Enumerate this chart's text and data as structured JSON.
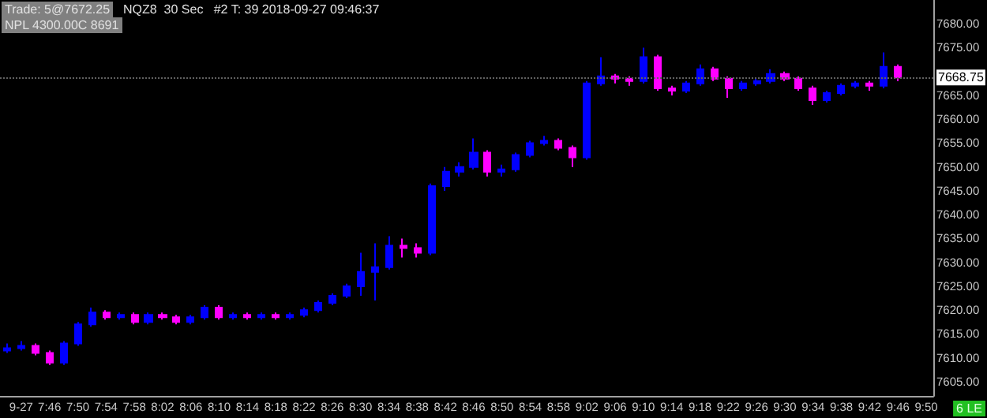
{
  "chart_data": {
    "type": "candlestick",
    "annotations": [
      "Trade: 5@7672.25",
      "NQZ8  30 Sec   #2 T: 39 2018-09-27 09:46:37",
      "NPL 4300.00C 8691",
      "6 LE"
    ],
    "x": [
      "2018-09-27T07:40",
      "2018-09-27T07:42",
      "2018-09-27T07:44",
      "2018-09-27T07:46",
      "2018-09-27T07:48",
      "2018-09-27T07:50",
      "2018-09-27T07:52",
      "2018-09-27T07:54",
      "2018-09-27T07:56",
      "2018-09-27T07:58",
      "2018-09-27T08:00",
      "2018-09-27T08:02",
      "2018-09-27T08:04",
      "2018-09-27T08:06",
      "2018-09-27T08:08",
      "2018-09-27T08:10",
      "2018-09-27T08:12",
      "2018-09-27T08:14",
      "2018-09-27T08:16",
      "2018-09-27T08:18",
      "2018-09-27T08:20",
      "2018-09-27T08:22",
      "2018-09-27T08:24",
      "2018-09-27T08:26",
      "2018-09-27T08:28",
      "2018-09-27T08:30",
      "2018-09-27T08:32",
      "2018-09-27T08:34",
      "2018-09-27T08:36",
      "2018-09-27T08:38",
      "2018-09-27T08:40",
      "2018-09-27T08:42",
      "2018-09-27T08:44",
      "2018-09-27T08:46",
      "2018-09-27T08:48",
      "2018-09-27T08:50",
      "2018-09-27T08:52",
      "2018-09-27T08:54",
      "2018-09-27T08:56",
      "2018-09-27T08:58",
      "2018-09-27T09:00",
      "2018-09-27T09:02",
      "2018-09-27T09:04",
      "2018-09-27T09:06",
      "2018-09-27T09:08",
      "2018-09-27T09:10",
      "2018-09-27T09:12",
      "2018-09-27T09:14",
      "2018-09-27T09:16",
      "2018-09-27T09:18",
      "2018-09-27T09:20",
      "2018-09-27T09:22",
      "2018-09-27T09:24",
      "2018-09-27T09:26",
      "2018-09-27T09:28",
      "2018-09-27T09:30",
      "2018-09-27T09:32",
      "2018-09-27T09:34",
      "2018-09-27T09:36",
      "2018-09-27T09:38",
      "2018-09-27T09:40",
      "2018-09-27T09:42",
      "2018-09-27T09:44",
      "2018-09-27T09:46"
    ],
    "ohlc": [
      [
        7611.5,
        7613,
        7611,
        7612
      ],
      [
        7612,
        7613.5,
        7611.5,
        7612.5
      ],
      [
        7612.5,
        7613,
        7610.5,
        7611
      ],
      [
        7611,
        7611.5,
        7608.5,
        7609
      ],
      [
        7609,
        7613.5,
        7608.5,
        7613
      ],
      [
        7613,
        7617.5,
        7612.5,
        7617
      ],
      [
        7617,
        7620.5,
        7616.5,
        7619.5
      ],
      [
        7619.5,
        7620,
        7618,
        7618.5
      ],
      [
        7618.5,
        7619.5,
        7618,
        7619
      ],
      [
        7619,
        7619.5,
        7617,
        7617.5
      ],
      [
        7617.5,
        7619.5,
        7617,
        7619
      ],
      [
        7619,
        7619.5,
        7618,
        7618.5
      ],
      [
        7618.5,
        7619,
        7617,
        7617.5
      ],
      [
        7617.5,
        7619,
        7617,
        7618.5
      ],
      [
        7618.5,
        7621,
        7618,
        7620.5
      ],
      [
        7620.5,
        7621,
        7618,
        7618.5
      ],
      [
        7618.5,
        7619.5,
        7618,
        7619
      ],
      [
        7619,
        7619.5,
        7618,
        7618.5
      ],
      [
        7618.5,
        7619.5,
        7618,
        7619
      ],
      [
        7619,
        7619.5,
        7618,
        7618.5
      ],
      [
        7618.5,
        7619.5,
        7618,
        7619
      ],
      [
        7619,
        7620.5,
        7618.5,
        7620
      ],
      [
        7620,
        7622,
        7619.5,
        7621.5
      ],
      [
        7621.5,
        7623.5,
        7621,
        7623
      ],
      [
        7623,
        7625.5,
        7622.5,
        7625
      ],
      [
        7625,
        7632,
        7623,
        7628
      ],
      [
        7628,
        7634,
        7622,
        7629
      ],
      [
        7629,
        7635.5,
        7628.5,
        7633.5
      ],
      [
        7633.5,
        7635,
        7631,
        7633
      ],
      [
        7633,
        7634,
        7631,
        7632
      ],
      [
        7632,
        7646.5,
        7631.5,
        7646
      ],
      [
        7646,
        7650,
        7645,
        7649
      ],
      [
        7649,
        7651,
        7648,
        7650
      ],
      [
        7650,
        7656,
        7649.5,
        7653
      ],
      [
        7653,
        7653.5,
        7648,
        7649
      ],
      [
        7649,
        7650.5,
        7648,
        7649.5
      ],
      [
        7649.5,
        7653,
        7649,
        7652.5
      ],
      [
        7652.5,
        7655.5,
        7652,
        7655
      ],
      [
        7655,
        7656.5,
        7654.5,
        7655.5
      ],
      [
        7655.5,
        7656,
        7653.5,
        7654
      ],
      [
        7654,
        7654.5,
        7650,
        7652
      ],
      [
        7652,
        7668,
        7651.5,
        7667.5
      ],
      [
        7667.5,
        7673,
        7667,
        7669
      ],
      [
        7669,
        7669.5,
        7667.5,
        7668.5
      ],
      [
        7668.5,
        7669,
        7667,
        7668
      ],
      [
        7668,
        7675,
        7667.5,
        7673
      ],
      [
        7673,
        7673.5,
        7666,
        7666.5
      ],
      [
        7666.5,
        7667,
        7665,
        7666
      ],
      [
        7666,
        7668,
        7665.5,
        7667.5
      ],
      [
        7667.5,
        7671.5,
        7667,
        7670.5
      ],
      [
        7670.5,
        7671,
        7668,
        7668.5
      ],
      [
        7668.5,
        7669,
        7664.5,
        7666.5
      ],
      [
        7666.5,
        7668,
        7666,
        7667.5
      ],
      [
        7667.5,
        7668.5,
        7667,
        7668
      ],
      [
        7668,
        7670.5,
        7667.5,
        7669.5
      ],
      [
        7669.5,
        7670,
        7668,
        7668.5
      ],
      [
        7668.5,
        7669,
        7666,
        7666.5
      ],
      [
        7666.5,
        7667,
        7663,
        7664
      ],
      [
        7664,
        7666,
        7663.5,
        7665.5
      ],
      [
        7665.5,
        7667.5,
        7665,
        7667
      ],
      [
        7667,
        7668,
        7666.5,
        7667.5
      ],
      [
        7667.5,
        7668,
        7666,
        7667
      ],
      [
        7667,
        7674,
        7666.5,
        7671
      ],
      [
        7671,
        7671.5,
        7668,
        7668.75
      ]
    ],
    "colors": [
      "#0000ff",
      "#0000ff",
      "#ff00ff",
      "#ff00ff",
      "#0000ff",
      "#0000ff",
      "#0000ff",
      "#ff00ff",
      "#0000ff",
      "#ff00ff",
      "#0000ff",
      "#ff00ff",
      "#ff00ff",
      "#0000ff",
      "#0000ff",
      "#ff00ff",
      "#0000ff",
      "#ff00ff",
      "#0000ff",
      "#ff00ff",
      "#0000ff",
      "#0000ff",
      "#0000ff",
      "#0000ff",
      "#0000ff",
      "#0000ff",
      "#0000ff",
      "#0000ff",
      "#ff00ff",
      "#ff00ff",
      "#0000ff",
      "#0000ff",
      "#0000ff",
      "#0000ff",
      "#ff00ff",
      "#0000ff",
      "#0000ff",
      "#0000ff",
      "#0000ff",
      "#ff00ff",
      "#ff00ff",
      "#0000ff",
      "#0000ff",
      "#ff00ff",
      "#ff00ff",
      "#0000ff",
      "#ff00ff",
      "#ff00ff",
      "#0000ff",
      "#0000ff",
      "#ff00ff",
      "#ff00ff",
      "#0000ff",
      "#0000ff",
      "#0000ff",
      "#ff00ff",
      "#ff00ff",
      "#ff00ff",
      "#0000ff",
      "#0000ff",
      "#0000ff",
      "#ff00ff",
      "#0000ff",
      "#ff00ff"
    ],
    "xlim": [
      "2018-09-27T07:39",
      "2018-09-27T09:51"
    ],
    "xticks": [
      {
        "value": "2018-09-27T07:42",
        "label": "9-27"
      },
      {
        "value": "2018-09-27T07:46",
        "label": "7:46"
      },
      {
        "value": "2018-09-27T07:50",
        "label": "7:50"
      },
      {
        "value": "2018-09-27T07:54",
        "label": "7:54"
      },
      {
        "value": "2018-09-27T07:58",
        "label": "7:58"
      },
      {
        "value": "2018-09-27T08:02",
        "label": "8:02"
      },
      {
        "value": "2018-09-27T08:06",
        "label": "8:06"
      },
      {
        "value": "2018-09-27T08:10",
        "label": "8:10"
      },
      {
        "value": "2018-09-27T08:14",
        "label": "8:14"
      },
      {
        "value": "2018-09-27T08:18",
        "label": "8:18"
      },
      {
        "value": "2018-09-27T08:22",
        "label": "8:22"
      },
      {
        "value": "2018-09-27T08:26",
        "label": "8:26"
      },
      {
        "value": "2018-09-27T08:30",
        "label": "8:30"
      },
      {
        "value": "2018-09-27T08:34",
        "label": "8:34"
      },
      {
        "value": "2018-09-27T08:38",
        "label": "8:38"
      },
      {
        "value": "2018-09-27T08:42",
        "label": "8:42"
      },
      {
        "value": "2018-09-27T08:46",
        "label": "8:46"
      },
      {
        "value": "2018-09-27T08:50",
        "label": "8:50"
      },
      {
        "value": "2018-09-27T08:54",
        "label": "8:54"
      },
      {
        "value": "2018-09-27T08:58",
        "label": "8:58"
      },
      {
        "value": "2018-09-27T09:02",
        "label": "9:02"
      },
      {
        "value": "2018-09-27T09:06",
        "label": "9:06"
      },
      {
        "value": "2018-09-27T09:10",
        "label": "9:10"
      },
      {
        "value": "2018-09-27T09:14",
        "label": "9:14"
      },
      {
        "value": "2018-09-27T09:18",
        "label": "9:18"
      },
      {
        "value": "2018-09-27T09:22",
        "label": "9:22"
      },
      {
        "value": "2018-09-27T09:26",
        "label": "9:26"
      },
      {
        "value": "2018-09-27T09:30",
        "label": "9:30"
      },
      {
        "value": "2018-09-27T09:34",
        "label": "9:34"
      },
      {
        "value": "2018-09-27T09:38",
        "label": "9:38"
      },
      {
        "value": "2018-09-27T09:42",
        "label": "9:42"
      },
      {
        "value": "2018-09-27T09:46",
        "label": "9:46"
      },
      {
        "value": "2018-09-27T09:50",
        "label": "9:50"
      }
    ],
    "ylim": [
      7602,
      7685
    ],
    "yticks": [
      {
        "value": 7605,
        "label": "7605.00"
      },
      {
        "value": 7610,
        "label": "7610.00"
      },
      {
        "value": 7615,
        "label": "7615.00"
      },
      {
        "value": 7620,
        "label": "7620.00"
      },
      {
        "value": 7625,
        "label": "7625.00"
      },
      {
        "value": 7630,
        "label": "7630.00"
      },
      {
        "value": 7635,
        "label": "7635.00"
      },
      {
        "value": 7640,
        "label": "7640.00"
      },
      {
        "value": 7645,
        "label": "7645.00"
      },
      {
        "value": 7650,
        "label": "7650.00"
      },
      {
        "value": 7655,
        "label": "7655.00"
      },
      {
        "value": 7660,
        "label": "7660.00"
      },
      {
        "value": 7665,
        "label": "7665.00"
      },
      {
        "value": 7675,
        "label": "7675.00"
      },
      {
        "value": 7680,
        "label": "7680.00"
      }
    ],
    "ref_lines": [
      {
        "axis": "y",
        "value": 7668.75,
        "label": "7668.75"
      }
    ],
    "grid": false
  }
}
